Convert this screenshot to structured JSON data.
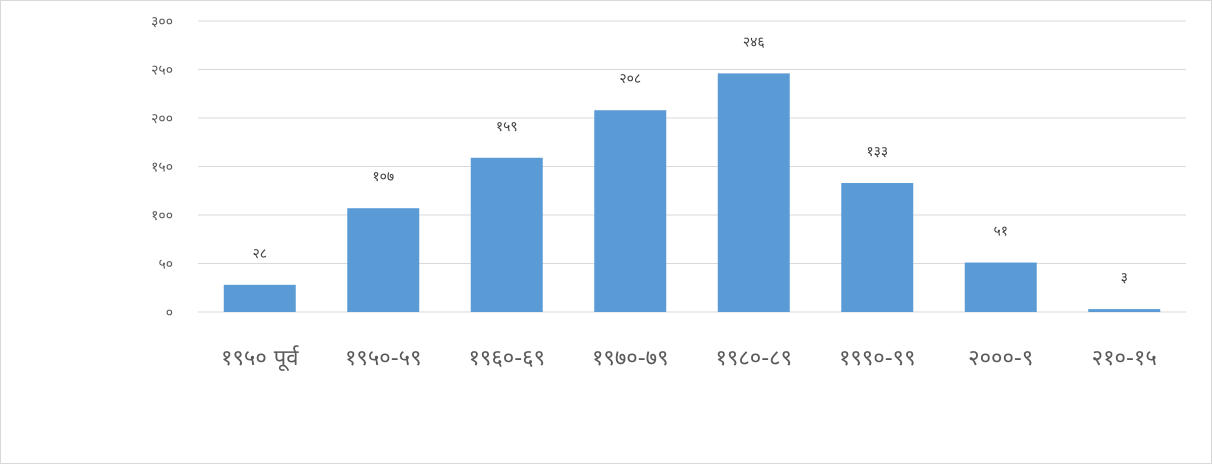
{
  "chart_data": {
    "type": "bar",
    "categories": [
      "१९५० पूर्व",
      "१९५०-५९",
      "१९६०-६९",
      "१९७०-७९",
      "१९८०-८९",
      "१९९०-९९",
      "२०००-९",
      "२१०-१५"
    ],
    "values": [
      28,
      107,
      159,
      208,
      246,
      133,
      51,
      3
    ],
    "value_labels": [
      "२८",
      "१०७",
      "१५९",
      "२०८",
      "२४६",
      "१३३",
      "५१",
      "३"
    ],
    "ylim": [
      0,
      300
    ],
    "yticks": [
      0,
      50,
      100,
      150,
      200,
      250,
      300
    ],
    "ytick_labels": [
      "०",
      "५०",
      "१००",
      "१५०",
      "२००",
      "२५०",
      "३००"
    ],
    "title": "",
    "xlabel": "",
    "ylabel": "",
    "grid": true,
    "legend": "none",
    "bar_color": "#5b9bd5"
  }
}
